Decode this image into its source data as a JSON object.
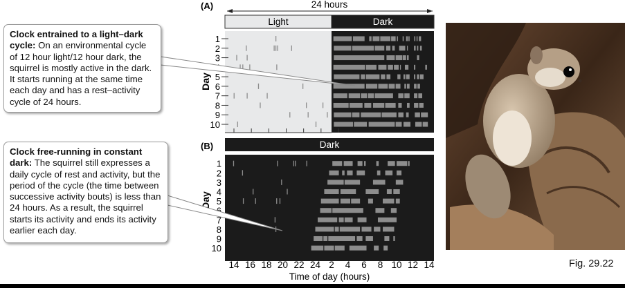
{
  "panel_a": {
    "label": "(A)",
    "span_label": "24 hours",
    "light_label": "Light",
    "dark_label": "Dark",
    "y_label": "Day",
    "days": [
      "1",
      "2",
      "3",
      "4",
      "5",
      "6",
      "7",
      "8",
      "9",
      "10"
    ],
    "light_fraction": 0.5,
    "activity_marks": [
      [
        5.8
      ],
      [
        2.4,
        5.6,
        5.8,
        6.0,
        7.6
      ],
      [
        1.3,
        2.5
      ],
      [
        1.7,
        2.0,
        2.8,
        5.9
      ],
      [],
      [
        3.8,
        8.9
      ],
      [
        1.0,
        2.5,
        4.8
      ],
      [
        4.0,
        9.3,
        11.2
      ],
      [
        7.4,
        9.5,
        11.7
      ],
      [
        1.4,
        10.4
      ]
    ],
    "activity_bouts": [
      [
        [
          12.45,
          14.57
        ],
        [
          14.7,
          16.03
        ],
        [
          16.56,
          16.83
        ],
        [
          16.96,
          17.75
        ],
        [
          17.83,
          19.0
        ],
        [
          19.08,
          19.6
        ],
        [
          19.74,
          19.87
        ],
        [
          20.4,
          20.53
        ],
        [
          20.8,
          21.0
        ],
        [
          21.07,
          21.2
        ],
        [
          21.73,
          21.86
        ],
        [
          22.0,
          22.12
        ],
        [
          22.26,
          22.52
        ]
      ],
      [
        [
          12.5,
          14.5
        ],
        [
          14.6,
          17.1
        ],
        [
          17.2,
          18.3
        ],
        [
          18.5,
          19.0
        ],
        [
          19.2,
          19.5
        ],
        [
          20.0,
          20.7
        ],
        [
          20.9,
          21.0
        ],
        [
          21.7,
          21.9
        ],
        [
          22.05,
          22.2
        ],
        [
          22.4,
          22.6
        ]
      ],
      [
        [
          12.5,
          18.3
        ],
        [
          18.55,
          19.5
        ],
        [
          19.6,
          20.35
        ],
        [
          20.4,
          20.8
        ],
        [
          20.9,
          21.1
        ],
        [
          22.05,
          22.3
        ]
      ],
      [
        [
          12.45,
          16.1
        ],
        [
          16.2,
          17.4
        ],
        [
          17.6,
          18.55
        ],
        [
          18.7,
          19.3
        ],
        [
          19.4,
          19.95
        ],
        [
          20.1,
          20.2
        ],
        [
          20.66,
          21.07
        ],
        [
          21.7,
          21.86
        ],
        [
          23.0,
          23.2
        ]
      ],
      [
        [
          12.5,
          15.45
        ],
        [
          15.6,
          16.1
        ],
        [
          16.2,
          17.75
        ],
        [
          17.9,
          18.4
        ],
        [
          18.55,
          19.0
        ],
        [
          19.8,
          20.15
        ],
        [
          20.5,
          20.7
        ],
        [
          20.8,
          21.2
        ],
        [
          21.7,
          21.86
        ],
        [
          22.05,
          22.3
        ],
        [
          22.4,
          22.8
        ]
      ],
      [
        [
          12.45,
          16.03
        ],
        [
          16.2,
          17.5
        ],
        [
          17.6,
          18.7
        ],
        [
          18.8,
          19.5
        ],
        [
          19.6,
          20.15
        ],
        [
          20.6,
          20.8
        ],
        [
          20.9,
          21.2
        ],
        [
          21.7,
          22.0
        ],
        [
          22.1,
          22.4
        ]
      ],
      [
        [
          12.45,
          14.05
        ],
        [
          14.2,
          15.5
        ],
        [
          15.6,
          16.3
        ],
        [
          16.4,
          17.1
        ],
        [
          17.2,
          19.3
        ],
        [
          19.9,
          20.5
        ],
        [
          20.6,
          21.2
        ],
        [
          21.7,
          22.1
        ],
        [
          22.2,
          22.65
        ]
      ],
      [
        [
          12.45,
          14.2
        ],
        [
          14.3,
          15.8
        ],
        [
          16.0,
          16.8
        ],
        [
          17.0,
          18.3
        ],
        [
          18.4,
          19.6
        ],
        [
          19.9,
          20.3
        ],
        [
          20.9,
          21.2
        ],
        [
          21.7,
          22.2
        ],
        [
          22.3,
          22.8
        ]
      ],
      [
        [
          12.5,
          14.5
        ],
        [
          14.6,
          15.45
        ],
        [
          15.6,
          17.9
        ],
        [
          18.0,
          19.7
        ],
        [
          19.9,
          20.5
        ],
        [
          20.8,
          21.1
        ],
        [
          21.8,
          22.4
        ],
        [
          22.5,
          23.3
        ]
      ],
      [
        [
          12.5,
          14.7
        ],
        [
          14.8,
          16.3
        ],
        [
          16.5,
          19.5
        ],
        [
          19.6,
          20.3
        ],
        [
          20.5,
          21.3
        ],
        [
          21.85,
          22.6
        ],
        [
          22.7,
          23.3
        ]
      ]
    ]
  },
  "panel_b": {
    "label": "(B)",
    "dark_label": "Dark",
    "y_label": "Day",
    "days": [
      "1",
      "2",
      "3",
      "4",
      "5",
      "6",
      "7",
      "8",
      "9",
      "10"
    ],
    "x_ticks": [
      "14",
      "16",
      "18",
      "20",
      "22",
      "24",
      "2",
      "4",
      "6",
      "8",
      "10",
      "12",
      "14"
    ],
    "x_label": "Time of day (hours)",
    "activity_marks": [
      [
        13.9,
        19.3,
        21.3,
        21.5,
        22.9
      ],
      [
        15.0
      ],
      [
        19.8
      ],
      [
        16.3,
        20.5
      ],
      [
        15.1,
        16.6,
        19.2,
        19.6
      ],
      [],
      [
        19.0
      ],
      [
        19.1
      ],
      [],
      []
    ],
    "activity_bouts": [
      [
        [
          26.1,
          27.3
        ],
        [
          27.5,
          28.6
        ],
        [
          29.2,
          29.8
        ],
        [
          30.0,
          30.2
        ],
        [
          31.5,
          31.8
        ],
        [
          32.9,
          33.8
        ],
        [
          34.0,
          35.3
        ],
        [
          35.4,
          35.6
        ]
      ],
      [
        [
          25.7,
          26.9
        ],
        [
          27.3,
          27.6
        ],
        [
          27.9,
          28.6
        ],
        [
          29.1,
          30.1
        ],
        [
          31.6,
          32.0
        ],
        [
          32.6,
          33.5
        ],
        [
          34.0,
          34.6
        ]
      ],
      [
        [
          25.5,
          27.5
        ],
        [
          27.6,
          29.5
        ],
        [
          31.1,
          32.6
        ],
        [
          33.9,
          34.8
        ]
      ],
      [
        [
          25.1,
          26.9
        ],
        [
          27.1,
          29.0
        ],
        [
          30.2,
          31.8
        ],
        [
          32.8,
          33.4
        ],
        [
          33.6,
          34.4
        ]
      ],
      [
        [
          24.7,
          26.9
        ],
        [
          27.1,
          28.3
        ],
        [
          28.4,
          29.5
        ],
        [
          30.5,
          31.1
        ],
        [
          32.3,
          33.7
        ],
        [
          33.9,
          34.4
        ]
      ],
      [
        [
          24.6,
          26.0
        ],
        [
          26.1,
          29.9
        ],
        [
          31.4,
          32.5
        ],
        [
          33.3,
          34.0
        ]
      ],
      [
        [
          24.3,
          26.7
        ],
        [
          26.9,
          27.5
        ],
        [
          27.6,
          28.6
        ],
        [
          29.2,
          30.3
        ],
        [
          31.7,
          34.0
        ]
      ],
      [
        [
          24.0,
          26.3
        ],
        [
          26.4,
          26.9
        ],
        [
          27.0,
          29.5
        ],
        [
          29.7,
          30.9
        ],
        [
          31.2,
          32.0
        ],
        [
          32.3,
          33.7
        ]
      ],
      [
        [
          23.8,
          24.9
        ],
        [
          25.0,
          25.5
        ],
        [
          25.6,
          28.9
        ],
        [
          29.1,
          29.8
        ],
        [
          30.2,
          31.1
        ],
        [
          32.5,
          33.1
        ],
        [
          33.6,
          33.8
        ]
      ],
      [
        [
          23.5,
          25.0
        ],
        [
          25.1,
          26.3
        ],
        [
          26.4,
          27.6
        ],
        [
          28.2,
          30.3
        ],
        [
          31.2,
          31.8
        ],
        [
          32.4,
          32.9
        ]
      ]
    ]
  },
  "callouts": {
    "a_title": "Clock entrained to a light–dark cycle:",
    "a_body": " On an environmental cycle of 12 hour light/12 hour dark, the squirrel is mostly active in the dark. It starts running at the same time each day and has a rest–activity cycle of 24 hours.",
    "b_title": "Clock free-running in constant dark:",
    "b_body": " The squirrel still expresses a daily cycle of rest and activity, but the period of the cycle (the time between successive activity bouts) is less than 24 hours. As a result, the squirrel starts its activity and ends its activity earlier each day."
  },
  "figure_label": "Fig. 29.22",
  "colors": {
    "light": "#e8e9ea",
    "dark": "#1b1b1b",
    "activity": "#8d8d8d"
  }
}
